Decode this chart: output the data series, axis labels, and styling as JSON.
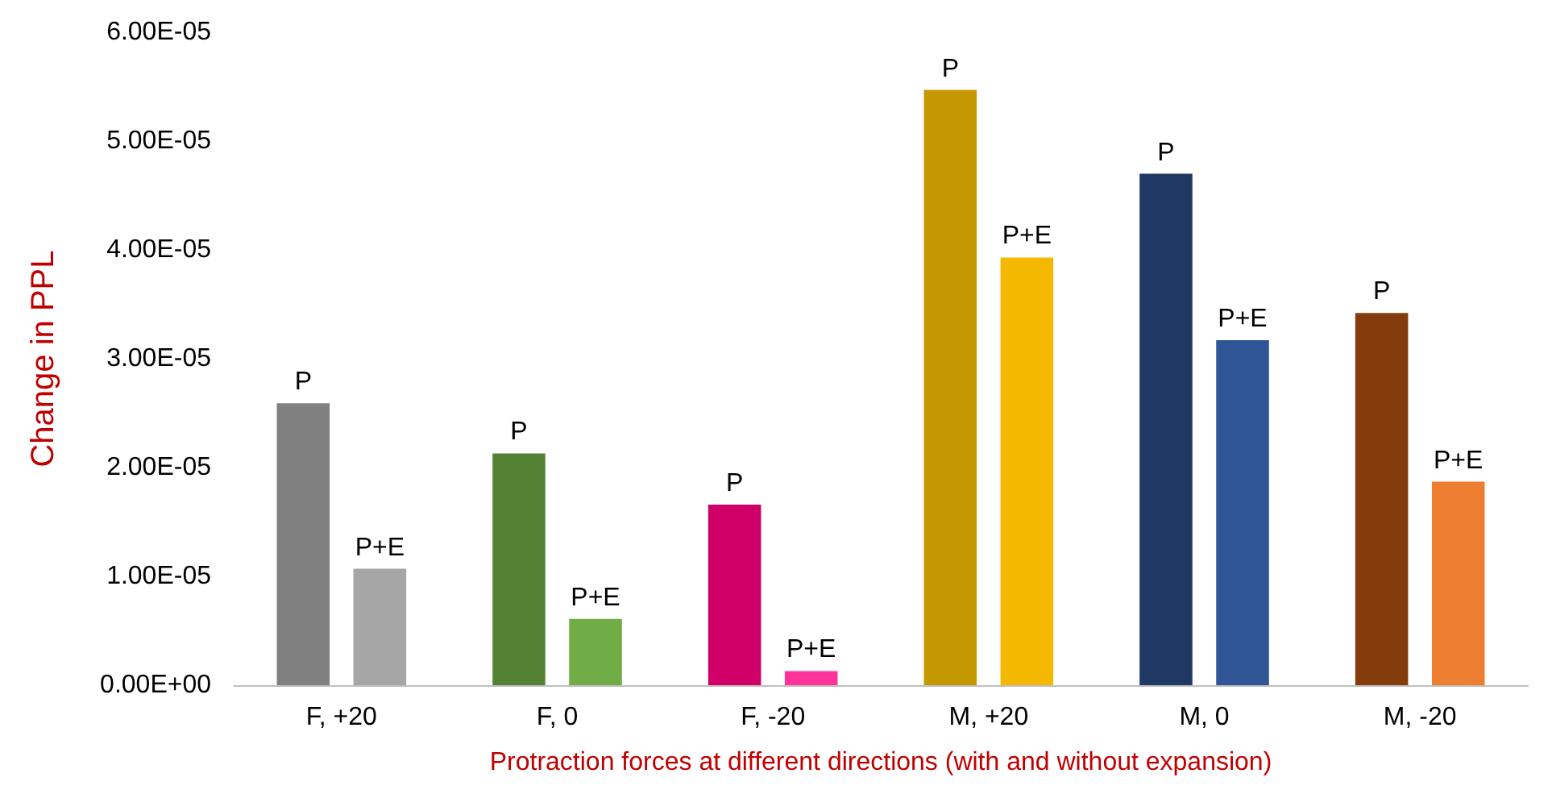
{
  "chart_data": {
    "type": "bar",
    "xlabel": "Protraction forces at different directions (with and without expansion)",
    "ylabel": "Change in PPL",
    "categories": [
      "F, +20",
      "F, 0",
      "F, -20",
      "M, +20",
      "M, 0",
      "M, -20"
    ],
    "series": [
      {
        "name": "P",
        "colors": [
          "#808080",
          "#548235",
          "#d10069",
          "#c39800",
          "#203864",
          "#843c0c"
        ],
        "values": [
          2.59e-05,
          2.13e-05,
          1.66e-05,
          5.47e-05,
          4.7e-05,
          3.42e-05
        ]
      },
      {
        "name": "P+E",
        "colors": [
          "#a6a6a6",
          "#70ad47",
          "#ff3399",
          "#f4b800",
          "#2f5597",
          "#ed7d31"
        ],
        "values": [
          1.07e-05,
          6.1e-06,
          1.3e-06,
          3.93e-05,
          3.17e-05,
          1.87e-05
        ]
      }
    ],
    "ylim": [
      0,
      6e-05
    ],
    "yticks": [
      {
        "value": 0,
        "label": "0.00E+00"
      },
      {
        "value": 1e-05,
        "label": "1.00E-05"
      },
      {
        "value": 2e-05,
        "label": "2.00E-05"
      },
      {
        "value": 3e-05,
        "label": "3.00E-05"
      },
      {
        "value": 4e-05,
        "label": "4.00E-05"
      },
      {
        "value": 5e-05,
        "label": "5.00E-05"
      },
      {
        "value": 6e-05,
        "label": "6.00E-05"
      }
    ],
    "grid": false,
    "legend": false
  }
}
